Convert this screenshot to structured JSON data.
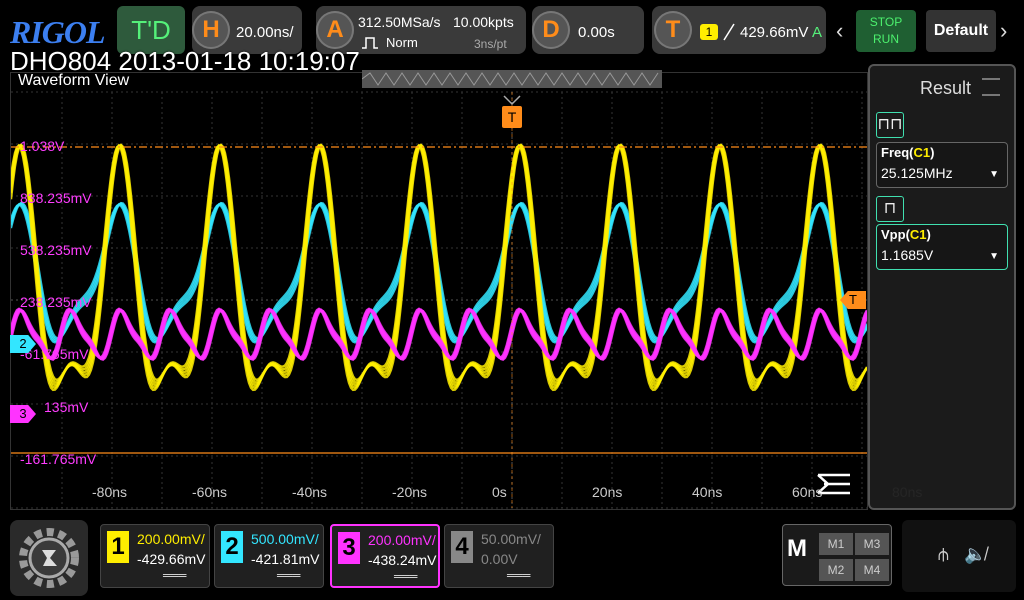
{
  "topbar": {
    "logo": "RIGOL",
    "mode": "T'D",
    "horizontal": {
      "letter": "H",
      "timebase": "20.00ns/"
    },
    "acquire": {
      "letter": "A",
      "sample_rate": "312.50MSa/s",
      "memory": "10.00kpts",
      "mode": "Norm",
      "time_per_pt": "3ns/pt"
    },
    "delay": {
      "letter": "D",
      "value": "0.00s"
    },
    "trigger": {
      "letter": "T",
      "source": "1",
      "level": "429.66mV",
      "coupling": "A"
    },
    "stop_label": "STOP",
    "run_label": "RUN",
    "default_label": "Default"
  },
  "overlay_title": "DHO804 2013-01-18 10:19:07",
  "waveform_view": {
    "title": "Waveform View",
    "trigger_marker": "T",
    "trigger_level_marker": "T",
    "time_labels": [
      "-80ns",
      "-60ns",
      "-40ns",
      "-20ns",
      "0s",
      "20ns",
      "40ns",
      "60ns",
      "80ns"
    ],
    "level_labels": [
      "1.038V",
      "838.235mV",
      "538.235mV",
      "238.235mV",
      "-61.765mV",
      "-161.765mV"
    ],
    "ch2_marker": "2",
    "ch3_marker": "3",
    "ch3_marker_text": "135mV",
    "menu_icon": "menu-lines-icon"
  },
  "result": {
    "title": "Result",
    "measurements": [
      {
        "name": "Freq",
        "channel": "C1",
        "value": "25.125MHz",
        "icon": "frequency-icon"
      },
      {
        "name": "Vpp",
        "channel": "C1",
        "value": "1.1685V",
        "icon": "vpp-icon"
      }
    ]
  },
  "channels": [
    {
      "num": "1",
      "scale": "200.00mV/",
      "offset": "-429.66mV",
      "color": "#ffee00",
      "active": false
    },
    {
      "num": "2",
      "scale": "500.00mV/",
      "offset": "-421.81mV",
      "color": "#33e6ff",
      "active": false
    },
    {
      "num": "3",
      "scale": "200.00mV/",
      "offset": "-438.24mV",
      "color": "#ff33ff",
      "active": true
    },
    {
      "num": "4",
      "scale": "50.00mV/",
      "offset": "0.00V",
      "color": "#888888",
      "active": false
    }
  ],
  "math": {
    "letter": "M",
    "buttons": [
      "M1",
      "M3",
      "M2",
      "M4"
    ]
  },
  "colors": {
    "ch1": "#ffee00",
    "ch2": "#33e6ff",
    "ch3": "#ff33ff",
    "trigger": "#ff8c1a"
  }
}
